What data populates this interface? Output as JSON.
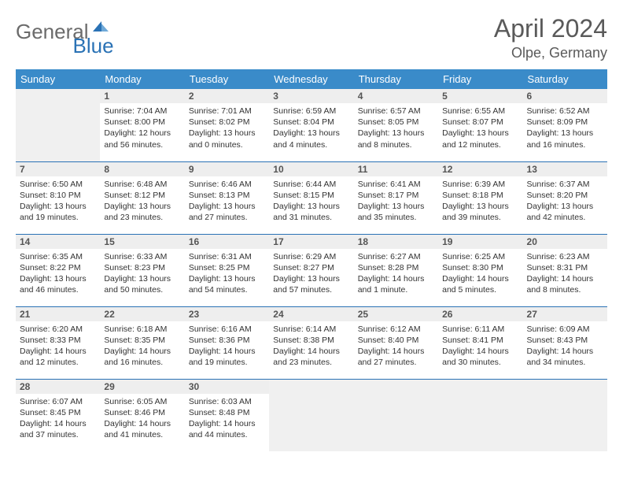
{
  "logo": {
    "text1": "General",
    "text2": "Blue"
  },
  "title": "April 2024",
  "location": "Olpe, Germany",
  "day_headers": [
    "Sunday",
    "Monday",
    "Tuesday",
    "Wednesday",
    "Thursday",
    "Friday",
    "Saturday"
  ],
  "colors": {
    "header_bg": "#3a8bc9",
    "border": "#2a72b5",
    "daynum_bg": "#eeeeee",
    "empty_bg": "#f0f0f0",
    "logo_gray": "#6b6b6b",
    "logo_blue": "#2a72b5",
    "text": "#333333"
  },
  "weeks": [
    [
      null,
      {
        "n": "1",
        "sr": "Sunrise: 7:04 AM",
        "ss": "Sunset: 8:00 PM",
        "d1": "Daylight: 12 hours",
        "d2": "and 56 minutes."
      },
      {
        "n": "2",
        "sr": "Sunrise: 7:01 AM",
        "ss": "Sunset: 8:02 PM",
        "d1": "Daylight: 13 hours",
        "d2": "and 0 minutes."
      },
      {
        "n": "3",
        "sr": "Sunrise: 6:59 AM",
        "ss": "Sunset: 8:04 PM",
        "d1": "Daylight: 13 hours",
        "d2": "and 4 minutes."
      },
      {
        "n": "4",
        "sr": "Sunrise: 6:57 AM",
        "ss": "Sunset: 8:05 PM",
        "d1": "Daylight: 13 hours",
        "d2": "and 8 minutes."
      },
      {
        "n": "5",
        "sr": "Sunrise: 6:55 AM",
        "ss": "Sunset: 8:07 PM",
        "d1": "Daylight: 13 hours",
        "d2": "and 12 minutes."
      },
      {
        "n": "6",
        "sr": "Sunrise: 6:52 AM",
        "ss": "Sunset: 8:09 PM",
        "d1": "Daylight: 13 hours",
        "d2": "and 16 minutes."
      }
    ],
    [
      {
        "n": "7",
        "sr": "Sunrise: 6:50 AM",
        "ss": "Sunset: 8:10 PM",
        "d1": "Daylight: 13 hours",
        "d2": "and 19 minutes."
      },
      {
        "n": "8",
        "sr": "Sunrise: 6:48 AM",
        "ss": "Sunset: 8:12 PM",
        "d1": "Daylight: 13 hours",
        "d2": "and 23 minutes."
      },
      {
        "n": "9",
        "sr": "Sunrise: 6:46 AM",
        "ss": "Sunset: 8:13 PM",
        "d1": "Daylight: 13 hours",
        "d2": "and 27 minutes."
      },
      {
        "n": "10",
        "sr": "Sunrise: 6:44 AM",
        "ss": "Sunset: 8:15 PM",
        "d1": "Daylight: 13 hours",
        "d2": "and 31 minutes."
      },
      {
        "n": "11",
        "sr": "Sunrise: 6:41 AM",
        "ss": "Sunset: 8:17 PM",
        "d1": "Daylight: 13 hours",
        "d2": "and 35 minutes."
      },
      {
        "n": "12",
        "sr": "Sunrise: 6:39 AM",
        "ss": "Sunset: 8:18 PM",
        "d1": "Daylight: 13 hours",
        "d2": "and 39 minutes."
      },
      {
        "n": "13",
        "sr": "Sunrise: 6:37 AM",
        "ss": "Sunset: 8:20 PM",
        "d1": "Daylight: 13 hours",
        "d2": "and 42 minutes."
      }
    ],
    [
      {
        "n": "14",
        "sr": "Sunrise: 6:35 AM",
        "ss": "Sunset: 8:22 PM",
        "d1": "Daylight: 13 hours",
        "d2": "and 46 minutes."
      },
      {
        "n": "15",
        "sr": "Sunrise: 6:33 AM",
        "ss": "Sunset: 8:23 PM",
        "d1": "Daylight: 13 hours",
        "d2": "and 50 minutes."
      },
      {
        "n": "16",
        "sr": "Sunrise: 6:31 AM",
        "ss": "Sunset: 8:25 PM",
        "d1": "Daylight: 13 hours",
        "d2": "and 54 minutes."
      },
      {
        "n": "17",
        "sr": "Sunrise: 6:29 AM",
        "ss": "Sunset: 8:27 PM",
        "d1": "Daylight: 13 hours",
        "d2": "and 57 minutes."
      },
      {
        "n": "18",
        "sr": "Sunrise: 6:27 AM",
        "ss": "Sunset: 8:28 PM",
        "d1": "Daylight: 14 hours",
        "d2": "and 1 minute."
      },
      {
        "n": "19",
        "sr": "Sunrise: 6:25 AM",
        "ss": "Sunset: 8:30 PM",
        "d1": "Daylight: 14 hours",
        "d2": "and 5 minutes."
      },
      {
        "n": "20",
        "sr": "Sunrise: 6:23 AM",
        "ss": "Sunset: 8:31 PM",
        "d1": "Daylight: 14 hours",
        "d2": "and 8 minutes."
      }
    ],
    [
      {
        "n": "21",
        "sr": "Sunrise: 6:20 AM",
        "ss": "Sunset: 8:33 PM",
        "d1": "Daylight: 14 hours",
        "d2": "and 12 minutes."
      },
      {
        "n": "22",
        "sr": "Sunrise: 6:18 AM",
        "ss": "Sunset: 8:35 PM",
        "d1": "Daylight: 14 hours",
        "d2": "and 16 minutes."
      },
      {
        "n": "23",
        "sr": "Sunrise: 6:16 AM",
        "ss": "Sunset: 8:36 PM",
        "d1": "Daylight: 14 hours",
        "d2": "and 19 minutes."
      },
      {
        "n": "24",
        "sr": "Sunrise: 6:14 AM",
        "ss": "Sunset: 8:38 PM",
        "d1": "Daylight: 14 hours",
        "d2": "and 23 minutes."
      },
      {
        "n": "25",
        "sr": "Sunrise: 6:12 AM",
        "ss": "Sunset: 8:40 PM",
        "d1": "Daylight: 14 hours",
        "d2": "and 27 minutes."
      },
      {
        "n": "26",
        "sr": "Sunrise: 6:11 AM",
        "ss": "Sunset: 8:41 PM",
        "d1": "Daylight: 14 hours",
        "d2": "and 30 minutes."
      },
      {
        "n": "27",
        "sr": "Sunrise: 6:09 AM",
        "ss": "Sunset: 8:43 PM",
        "d1": "Daylight: 14 hours",
        "d2": "and 34 minutes."
      }
    ],
    [
      {
        "n": "28",
        "sr": "Sunrise: 6:07 AM",
        "ss": "Sunset: 8:45 PM",
        "d1": "Daylight: 14 hours",
        "d2": "and 37 minutes."
      },
      {
        "n": "29",
        "sr": "Sunrise: 6:05 AM",
        "ss": "Sunset: 8:46 PM",
        "d1": "Daylight: 14 hours",
        "d2": "and 41 minutes."
      },
      {
        "n": "30",
        "sr": "Sunrise: 6:03 AM",
        "ss": "Sunset: 8:48 PM",
        "d1": "Daylight: 14 hours",
        "d2": "and 44 minutes."
      },
      null,
      null,
      null,
      null
    ]
  ]
}
